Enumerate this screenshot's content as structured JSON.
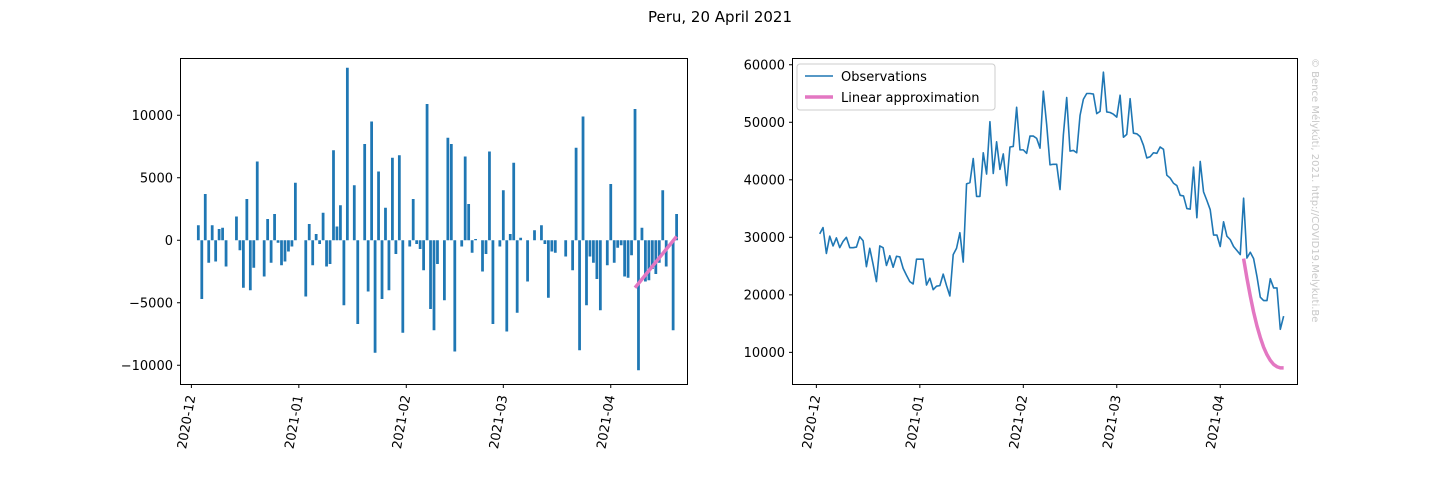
{
  "figure": {
    "title": "Peru, 20 April 2021",
    "watermark": "© Bence Mélykúti, 2021. http://COVID19.Melykuti.Be"
  },
  "chart_data": [
    {
      "type": "bar",
      "title": "",
      "xlabel": "",
      "ylabel": "",
      "x_tick_labels": [
        "2020-12",
        "2021-01",
        "2021-02",
        "2021-03",
        "2021-04"
      ],
      "x_ticks": [
        "2020-12-01",
        "2021-01-01",
        "2021-02-01",
        "2021-03-01",
        "2021-04-01"
      ],
      "xlim": [
        "2020-11-28",
        "2021-04-23"
      ],
      "ylim": [
        -11500,
        14500
      ],
      "y_ticks": [
        -10000,
        -5000,
        0,
        5000,
        10000
      ],
      "y_tick_labels": [
        "−10000",
        "−5000",
        "0",
        "5000",
        "10000"
      ],
      "bar_color": "#1f77b4",
      "bars": [
        {
          "x": "2020-12-03",
          "y": 1200
        },
        {
          "x": "2020-12-04",
          "y": -4700
        },
        {
          "x": "2020-12-05",
          "y": 3700
        },
        {
          "x": "2020-12-06",
          "y": -1800
        },
        {
          "x": "2020-12-07",
          "y": 1200
        },
        {
          "x": "2020-12-08",
          "y": -1700
        },
        {
          "x": "2020-12-09",
          "y": 900
        },
        {
          "x": "2020-12-10",
          "y": 1000
        },
        {
          "x": "2020-12-11",
          "y": -2100
        },
        {
          "x": "2020-12-14",
          "y": 1900
        },
        {
          "x": "2020-12-15",
          "y": -800
        },
        {
          "x": "2020-12-16",
          "y": -3800
        },
        {
          "x": "2020-12-17",
          "y": 3300
        },
        {
          "x": "2020-12-18",
          "y": -4000
        },
        {
          "x": "2020-12-19",
          "y": -2200
        },
        {
          "x": "2020-12-20",
          "y": 6300
        },
        {
          "x": "2020-12-22",
          "y": -2900
        },
        {
          "x": "2020-12-23",
          "y": 1700
        },
        {
          "x": "2020-12-24",
          "y": -1800
        },
        {
          "x": "2020-12-25",
          "y": 2100
        },
        {
          "x": "2020-12-26",
          "y": -200
        },
        {
          "x": "2020-12-27",
          "y": -2000
        },
        {
          "x": "2020-12-28",
          "y": -1700
        },
        {
          "x": "2020-12-29",
          "y": -900
        },
        {
          "x": "2020-12-30",
          "y": -500
        },
        {
          "x": "2020-12-31",
          "y": 4600
        },
        {
          "x": "2021-01-03",
          "y": -4500
        },
        {
          "x": "2021-01-04",
          "y": 1300
        },
        {
          "x": "2021-01-05",
          "y": -2000
        },
        {
          "x": "2021-01-06",
          "y": 500
        },
        {
          "x": "2021-01-07",
          "y": -300
        },
        {
          "x": "2021-01-08",
          "y": 2200
        },
        {
          "x": "2021-01-09",
          "y": -2100
        },
        {
          "x": "2021-01-10",
          "y": -1900
        },
        {
          "x": "2021-01-11",
          "y": 7200
        },
        {
          "x": "2021-01-12",
          "y": 1100
        },
        {
          "x": "2021-01-13",
          "y": 2800
        },
        {
          "x": "2021-01-14",
          "y": -5200
        },
        {
          "x": "2021-01-15",
          "y": 13800
        },
        {
          "x": "2021-01-17",
          "y": 4400
        },
        {
          "x": "2021-01-18",
          "y": -6700
        },
        {
          "x": "2021-01-20",
          "y": 7700
        },
        {
          "x": "2021-01-21",
          "y": -4100
        },
        {
          "x": "2021-01-22",
          "y": 9500
        },
        {
          "x": "2021-01-23",
          "y": -9000
        },
        {
          "x": "2021-01-24",
          "y": 5500
        },
        {
          "x": "2021-01-25",
          "y": -4700
        },
        {
          "x": "2021-01-26",
          "y": 2600
        },
        {
          "x": "2021-01-27",
          "y": -4000
        },
        {
          "x": "2021-01-28",
          "y": 6600
        },
        {
          "x": "2021-01-29",
          "y": -1100
        },
        {
          "x": "2021-01-30",
          "y": 6800
        },
        {
          "x": "2021-01-31",
          "y": -7400
        },
        {
          "x": "2021-02-02",
          "y": -500
        },
        {
          "x": "2021-02-03",
          "y": 3300
        },
        {
          "x": "2021-02-04",
          "y": -300
        },
        {
          "x": "2021-02-05",
          "y": -700
        },
        {
          "x": "2021-02-06",
          "y": -2400
        },
        {
          "x": "2021-02-07",
          "y": 10900
        },
        {
          "x": "2021-02-08",
          "y": -5500
        },
        {
          "x": "2021-02-09",
          "y": -7200
        },
        {
          "x": "2021-02-10",
          "y": -1900
        },
        {
          "x": "2021-02-12",
          "y": -4800
        },
        {
          "x": "2021-02-13",
          "y": 8200
        },
        {
          "x": "2021-02-14",
          "y": 7700
        },
        {
          "x": "2021-02-15",
          "y": -8900
        },
        {
          "x": "2021-02-17",
          "y": -500
        },
        {
          "x": "2021-02-18",
          "y": 6700
        },
        {
          "x": "2021-02-19",
          "y": 2900
        },
        {
          "x": "2021-02-20",
          "y": -1000
        },
        {
          "x": "2021-02-21",
          "y": 100
        },
        {
          "x": "2021-02-23",
          "y": -2500
        },
        {
          "x": "2021-02-24",
          "y": -1100
        },
        {
          "x": "2021-02-25",
          "y": 7100
        },
        {
          "x": "2021-02-26",
          "y": -6700
        },
        {
          "x": "2021-02-28",
          "y": -500
        },
        {
          "x": "2021-03-01",
          "y": 4000
        },
        {
          "x": "2021-03-02",
          "y": -7300
        },
        {
          "x": "2021-03-03",
          "y": 500
        },
        {
          "x": "2021-03-04",
          "y": 6200
        },
        {
          "x": "2021-03-05",
          "y": -5800
        },
        {
          "x": "2021-03-06",
          "y": 200
        },
        {
          "x": "2021-03-08",
          "y": -3300
        },
        {
          "x": "2021-03-10",
          "y": 800
        },
        {
          "x": "2021-03-12",
          "y": 1200
        },
        {
          "x": "2021-03-13",
          "y": -300
        },
        {
          "x": "2021-03-14",
          "y": -4600
        },
        {
          "x": "2021-03-15",
          "y": -900
        },
        {
          "x": "2021-03-16",
          "y": -1000
        },
        {
          "x": "2021-03-19",
          "y": -1300
        },
        {
          "x": "2021-03-21",
          "y": -2400
        },
        {
          "x": "2021-03-22",
          "y": 7400
        },
        {
          "x": "2021-03-23",
          "y": -8800
        },
        {
          "x": "2021-03-24",
          "y": 9900
        },
        {
          "x": "2021-03-25",
          "y": -5200
        },
        {
          "x": "2021-03-26",
          "y": -1300
        },
        {
          "x": "2021-03-27",
          "y": -1800
        },
        {
          "x": "2021-03-28",
          "y": -3100
        },
        {
          "x": "2021-03-29",
          "y": -5600
        },
        {
          "x": "2021-03-31",
          "y": -2000
        },
        {
          "x": "2021-04-01",
          "y": 4500
        },
        {
          "x": "2021-04-02",
          "y": -1800
        },
        {
          "x": "2021-04-03",
          "y": -600
        },
        {
          "x": "2021-04-04",
          "y": -400
        },
        {
          "x": "2021-04-05",
          "y": -2900
        },
        {
          "x": "2021-04-06",
          "y": -3000
        },
        {
          "x": "2021-04-07",
          "y": -1200
        },
        {
          "x": "2021-04-08",
          "y": 10500
        },
        {
          "x": "2021-04-09",
          "y": -10400
        },
        {
          "x": "2021-04-10",
          "y": 1000
        },
        {
          "x": "2021-04-11",
          "y": -3300
        },
        {
          "x": "2021-04-12",
          "y": -3200
        },
        {
          "x": "2021-04-13",
          "y": -2300
        },
        {
          "x": "2021-04-14",
          "y": -2700
        },
        {
          "x": "2021-04-15",
          "y": -1800
        },
        {
          "x": "2021-04-16",
          "y": 4000
        },
        {
          "x": "2021-04-17",
          "y": -2100
        },
        {
          "x": "2021-04-19",
          "y": -7200
        },
        {
          "x": "2021-04-20",
          "y": 2100
        }
      ],
      "fit_line": {
        "color": "#e377c2",
        "points": [
          {
            "x": "2021-04-08",
            "y": -3800
          },
          {
            "x": "2021-04-20",
            "y": 300
          }
        ]
      }
    },
    {
      "type": "line",
      "title": "",
      "xlabel": "",
      "ylabel": "",
      "x_tick_labels": [
        "2020-12",
        "2021-01",
        "2021-02",
        "2021-03",
        "2021-04"
      ],
      "x_ticks": [
        "2020-12-01",
        "2021-01-01",
        "2021-02-01",
        "2021-03-01",
        "2021-04-01"
      ],
      "xlim": [
        "2020-11-24",
        "2021-04-24"
      ],
      "ylim": [
        4500,
        61000
      ],
      "y_ticks": [
        10000,
        20000,
        30000,
        40000,
        50000,
        60000
      ],
      "y_tick_labels": [
        "10000",
        "20000",
        "30000",
        "40000",
        "50000",
        "60000"
      ],
      "legend_position": "top-left",
      "series": [
        {
          "name": "Observations",
          "color": "#1f77b4",
          "start_date": "2020-12-02",
          "values": [
            30600,
            31700,
            27200,
            30200,
            28500,
            29900,
            28200,
            29300,
            30000,
            28200,
            28200,
            28300,
            30100,
            29400,
            24900,
            28100,
            25300,
            22300,
            28500,
            28200,
            25100,
            26800,
            24800,
            26700,
            26600,
            24600,
            23400,
            22300,
            21900,
            26200,
            26200,
            26200,
            21700,
            22900,
            20900,
            21500,
            21600,
            23600,
            21600,
            19800,
            27000,
            28100,
            30800,
            25700,
            39300,
            39500,
            43700,
            37100,
            37100,
            44700,
            41000,
            50100,
            41100,
            46600,
            41800,
            44500,
            39000,
            45700,
            45800,
            52600,
            45200,
            45200,
            44600,
            47600,
            47600,
            47200,
            45500,
            55400,
            49600,
            42600,
            42700,
            42700,
            38300,
            47800,
            54300,
            45000,
            45100,
            44700,
            51200,
            54000,
            55000,
            55000,
            54900,
            51500,
            51900,
            58700,
            51800,
            51700,
            51400,
            50900,
            54700,
            47400,
            47900,
            54100,
            48100,
            48000,
            47500,
            46000,
            43800,
            44000,
            44700,
            44600,
            45700,
            45300,
            40800,
            40300,
            39400,
            39000,
            37300,
            37200,
            35000,
            34900,
            42200,
            33400,
            43200,
            37900,
            36400,
            34800,
            30400,
            30400,
            28400,
            32700,
            30200,
            29600,
            28400,
            27700,
            27000,
            36800,
            26400,
            27400,
            26300,
            23200,
            19600,
            19000,
            19000,
            22800,
            21200,
            21200,
            14000,
            16300
          ]
        },
        {
          "name": "Linear approximation",
          "color": "#e377c2",
          "points": [
            {
              "x": "2021-04-08",
              "y": 26300
            },
            {
              "x": "2021-04-09",
              "y": 22900
            },
            {
              "x": "2021-04-10",
              "y": 19800
            },
            {
              "x": "2021-04-11",
              "y": 17000
            },
            {
              "x": "2021-04-12",
              "y": 14600
            },
            {
              "x": "2021-04-13",
              "y": 12600
            },
            {
              "x": "2021-04-14",
              "y": 10900
            },
            {
              "x": "2021-04-15",
              "y": 9600
            },
            {
              "x": "2021-04-16",
              "y": 8600
            },
            {
              "x": "2021-04-17",
              "y": 7900
            },
            {
              "x": "2021-04-18",
              "y": 7500
            },
            {
              "x": "2021-04-19",
              "y": 7300
            },
            {
              "x": "2021-04-20",
              "y": 7300
            }
          ]
        }
      ]
    }
  ]
}
